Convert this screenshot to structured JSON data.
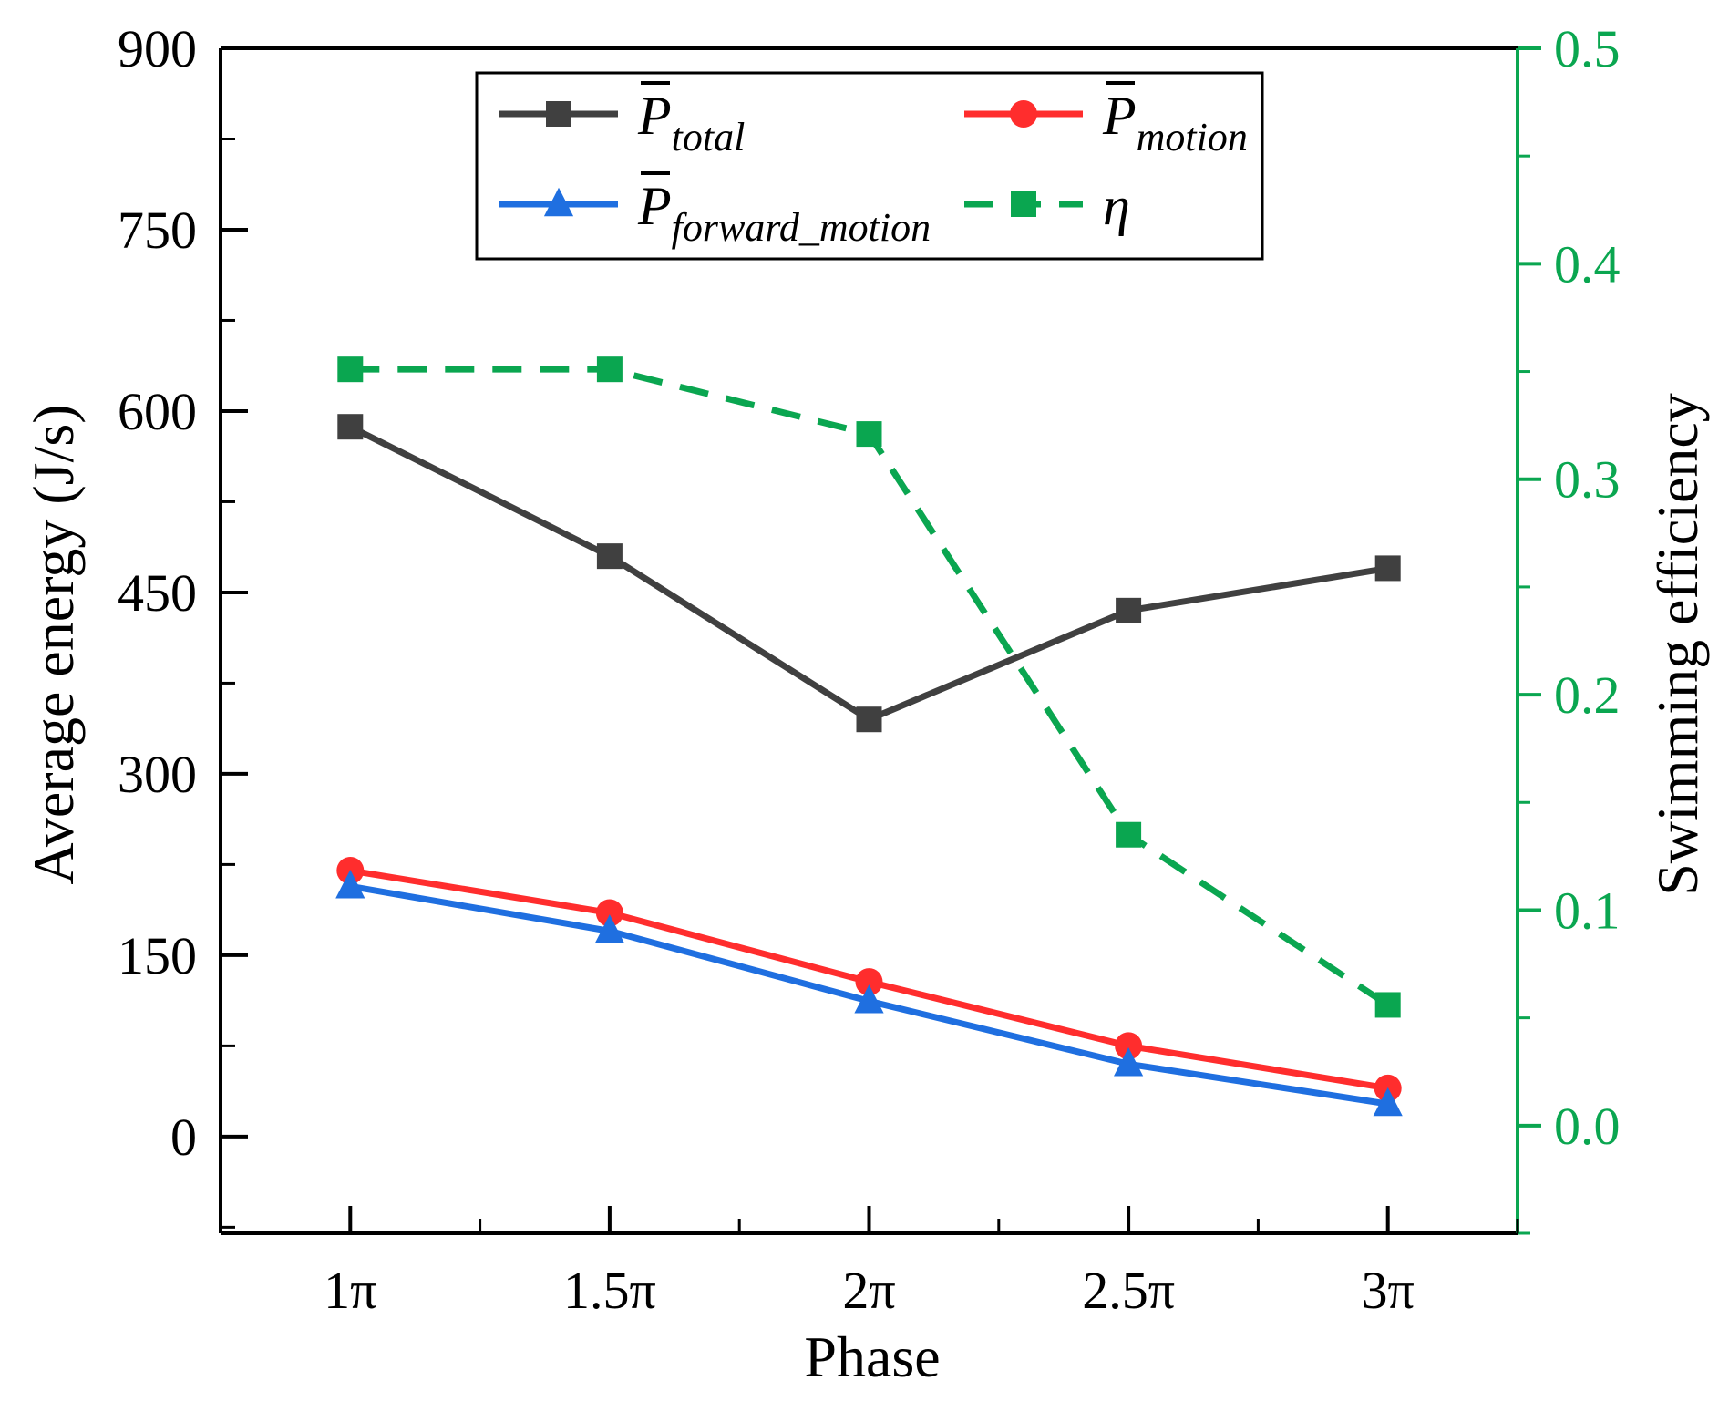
{
  "chart_data": {
    "type": "line",
    "title": "",
    "xlabel": "Phase",
    "ylabel_left": "Average energy (J/s)",
    "ylabel_right": "Swimming efficiency",
    "categories": [
      "1π",
      "1.5π",
      "2π",
      "2.5π",
      "3π"
    ],
    "ylim_left": [
      -80,
      900
    ],
    "ylim_right": [
      -0.05,
      0.5
    ],
    "yticks_left": [
      "0",
      "150",
      "300",
      "450",
      "600",
      "750",
      "900"
    ],
    "yticks_right": [
      "0.0",
      "0.1",
      "0.2",
      "0.3",
      "0.4",
      "0.5"
    ],
    "colors": {
      "total": "#404040",
      "motion": "#ff2d2d",
      "forward": "#1f6fe0",
      "eta": "#0aa650",
      "axis": "#000000"
    },
    "series": [
      {
        "name": "P_total",
        "label_main": "P",
        "label_sub": "total",
        "axis": "left",
        "marker": "square",
        "dash": false,
        "color_key": "total",
        "values": [
          587,
          480,
          345,
          435,
          470
        ]
      },
      {
        "name": "P_motion",
        "label_main": "P",
        "label_sub": "motion",
        "axis": "left",
        "marker": "circle",
        "dash": false,
        "color_key": "motion",
        "values": [
          220,
          185,
          128,
          75,
          40
        ]
      },
      {
        "name": "P_forward_motion",
        "label_main": "P",
        "label_sub": "forward_motion",
        "axis": "left",
        "marker": "triangle",
        "dash": false,
        "color_key": "forward",
        "values": [
          207,
          170,
          112,
          60,
          27
        ]
      },
      {
        "name": "eta",
        "label_main": "η",
        "label_sub": "",
        "axis": "right",
        "marker": "square",
        "dash": true,
        "color_key": "eta",
        "values": [
          0.351,
          0.351,
          0.321,
          0.135,
          0.056
        ]
      }
    ],
    "legend": "top-center"
  }
}
